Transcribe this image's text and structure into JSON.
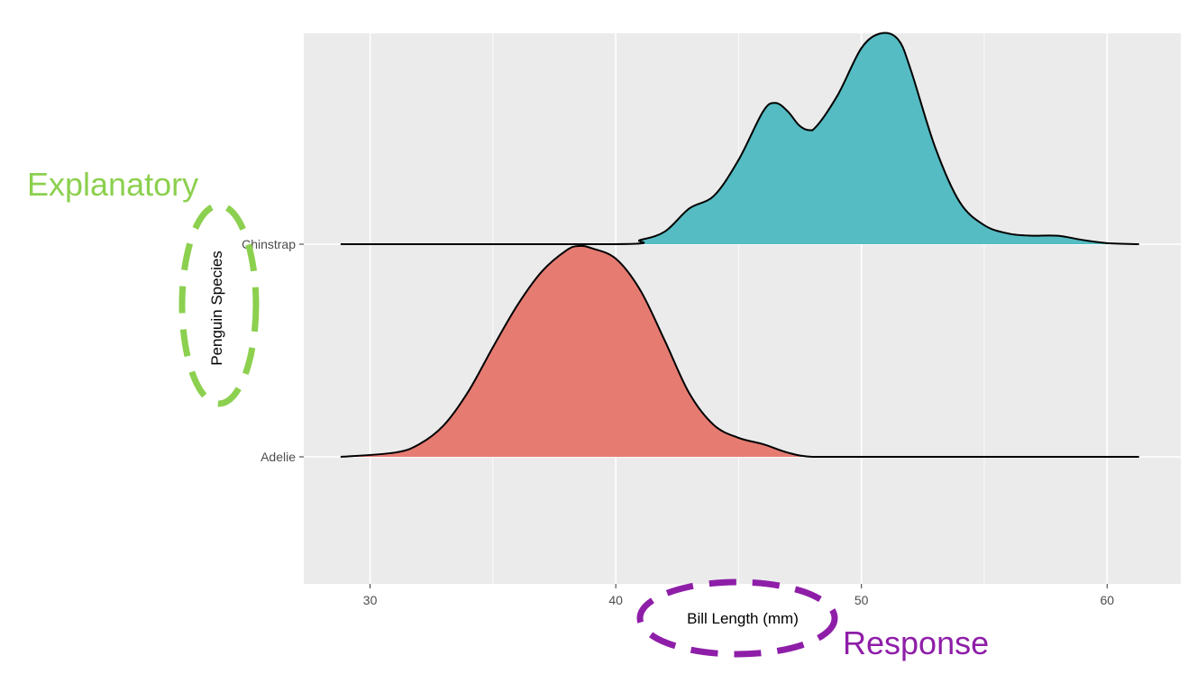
{
  "chart_data": {
    "type": "ridgeline",
    "xlabel": "Bill Length (mm)",
    "ylabel": "Penguin Species",
    "xlim": [
      27.3,
      63
    ],
    "x_ticks": [
      30,
      40,
      50,
      60
    ],
    "categories": [
      "Adelie",
      "Chinstrap"
    ],
    "grid": true,
    "series": [
      {
        "name": "Adelie",
        "color": "#e67b72",
        "x": [
          28.8,
          31,
          32,
          33,
          34,
          35,
          36,
          37,
          38,
          38.5,
          39,
          40,
          41,
          42,
          43,
          44,
          45,
          46,
          47,
          48,
          50,
          55,
          61.3
        ],
        "density": [
          0,
          0.02,
          0.06,
          0.15,
          0.31,
          0.52,
          0.72,
          0.88,
          0.98,
          1.0,
          0.99,
          0.94,
          0.79,
          0.55,
          0.3,
          0.15,
          0.09,
          0.06,
          0.02,
          0,
          0,
          0,
          0
        ]
      },
      {
        "name": "Chinstrap",
        "color": "#54bcc2",
        "x": [
          28.8,
          40,
          41,
          42,
          43,
          44,
          45,
          46,
          46.5,
          47,
          47.5,
          48,
          49,
          50,
          50.8,
          51.5,
          52,
          53,
          54,
          55,
          56,
          57,
          58,
          59,
          60,
          61.3
        ],
        "density": [
          0,
          0,
          0.02,
          0.06,
          0.17,
          0.23,
          0.4,
          0.63,
          0.67,
          0.63,
          0.56,
          0.54,
          0.7,
          0.93,
          1.0,
          0.97,
          0.83,
          0.46,
          0.2,
          0.09,
          0.05,
          0.04,
          0.04,
          0.02,
          0.005,
          0
        ]
      }
    ]
  },
  "annotations": {
    "explanatory": "Explanatory",
    "response": "Response"
  },
  "colors": {
    "panel_background": "#ebebeb",
    "grid": "#ffffff",
    "explanatory": "#8cd04f",
    "response": "#8e1ea8"
  }
}
